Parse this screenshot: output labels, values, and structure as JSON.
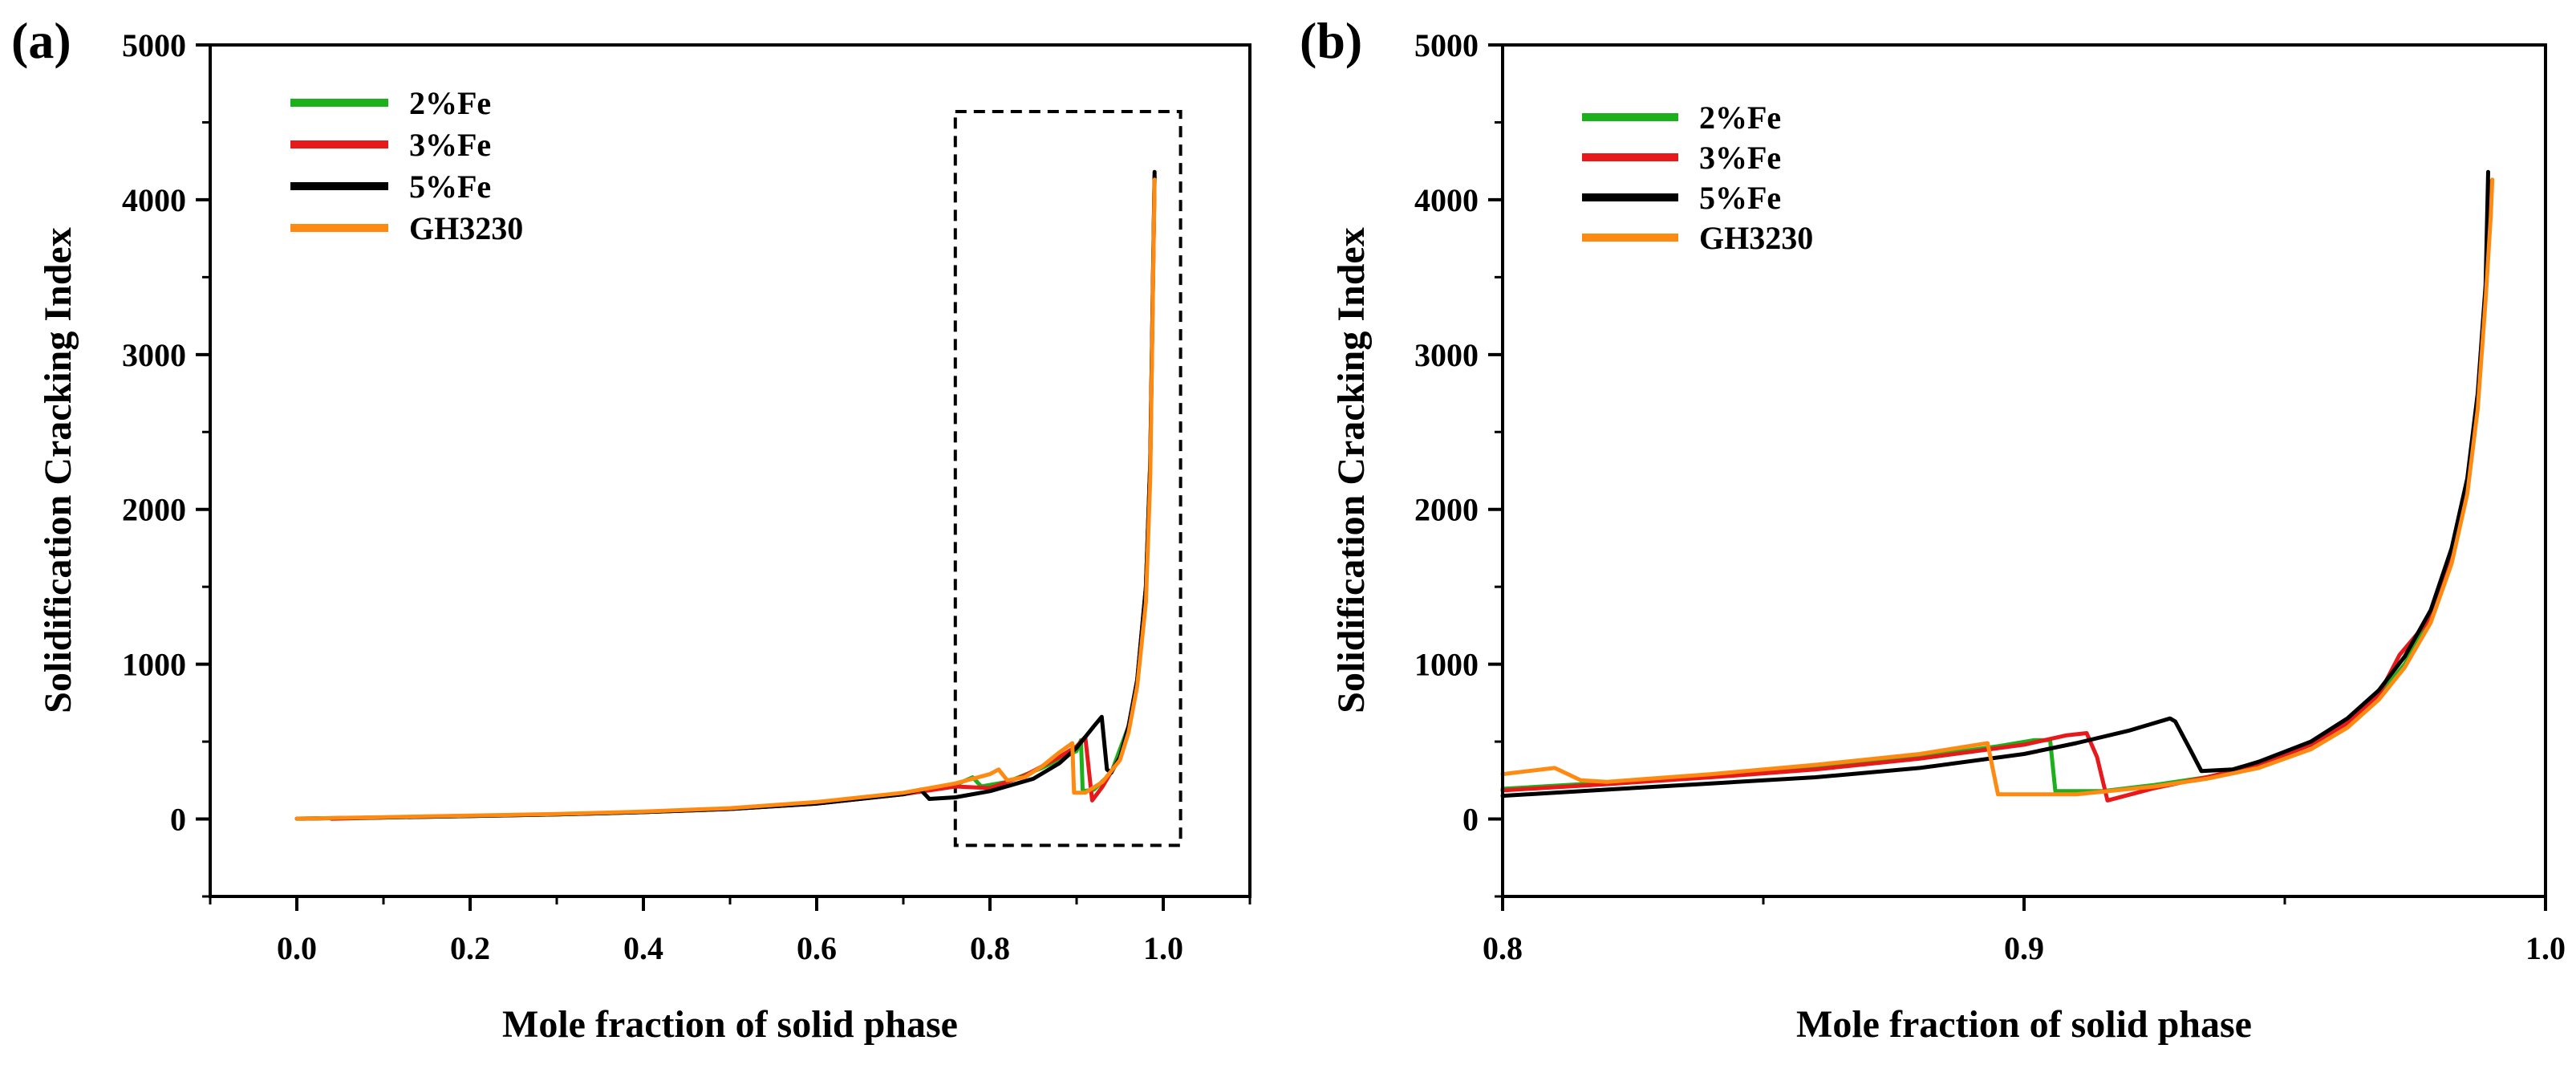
{
  "chart_data": [
    {
      "panel_label": "(a)",
      "type": "line",
      "xlabel": "Mole fraction of solid phase",
      "ylabel": "Solidification Cracking Index",
      "xlim": [
        -0.1,
        1.1
      ],
      "ylim": [
        -500,
        5000
      ],
      "xticks": [
        0.0,
        0.2,
        0.4,
        0.6,
        0.8,
        1.0
      ],
      "xtick_labels": [
        "0.0",
        "0.2",
        "0.4",
        "0.6",
        "0.8",
        "1.0"
      ],
      "yticks": [
        0,
        1000,
        2000,
        3000,
        4000,
        5000
      ],
      "ytick_labels": [
        "0",
        "1000",
        "2000",
        "3000",
        "4000",
        "5000"
      ],
      "legend_position": "top-left",
      "annotation": {
        "type": "dashed-rectangle",
        "x": [
          0.76,
          1.02
        ],
        "y": [
          -170,
          4570
        ]
      },
      "series": [
        {
          "name": "2%Fe",
          "color": "#1db01d",
          "points": [
            [
              0.0,
              2
            ],
            [
              0.1,
              10
            ],
            [
              0.2,
              20
            ],
            [
              0.3,
              30
            ],
            [
              0.4,
              45
            ],
            [
              0.5,
              65
            ],
            [
              0.6,
              100
            ],
            [
              0.7,
              160
            ],
            [
              0.76,
              220
            ],
            [
              0.78,
              270
            ],
            [
              0.79,
              210
            ],
            [
              0.82,
              240
            ],
            [
              0.86,
              330
            ],
            [
              0.9,
              440
            ],
            [
              0.905,
              510
            ],
            [
              0.907,
              180
            ],
            [
              0.92,
              190
            ],
            [
              0.94,
              300
            ],
            [
              0.96,
              600
            ],
            [
              0.97,
              900
            ],
            [
              0.98,
              1500
            ],
            [
              0.985,
              2300
            ],
            [
              0.99,
              4150
            ]
          ]
        },
        {
          "name": "3%Fe",
          "color": "#e8191b",
          "points": [
            [
              0.04,
              2
            ],
            [
              0.1,
              10
            ],
            [
              0.2,
              20
            ],
            [
              0.3,
              30
            ],
            [
              0.4,
              45
            ],
            [
              0.5,
              65
            ],
            [
              0.6,
              100
            ],
            [
              0.7,
              160
            ],
            [
              0.76,
              210
            ],
            [
              0.8,
              200
            ],
            [
              0.84,
              280
            ],
            [
              0.88,
              400
            ],
            [
              0.9,
              470
            ],
            [
              0.91,
              530
            ],
            [
              0.918,
              120
            ],
            [
              0.93,
              210
            ],
            [
              0.95,
              400
            ],
            [
              0.96,
              600
            ],
            [
              0.97,
              900
            ],
            [
              0.98,
              1500
            ],
            [
              0.985,
              2300
            ],
            [
              0.99,
              4150
            ]
          ]
        },
        {
          "name": "5%Fe",
          "color": "#000000",
          "points": [
            [
              0.0,
              3
            ],
            [
              0.1,
              10
            ],
            [
              0.2,
              20
            ],
            [
              0.3,
              30
            ],
            [
              0.4,
              45
            ],
            [
              0.5,
              65
            ],
            [
              0.6,
              100
            ],
            [
              0.7,
              160
            ],
            [
              0.72,
              190
            ],
            [
              0.73,
              130
            ],
            [
              0.76,
              140
            ],
            [
              0.8,
              180
            ],
            [
              0.85,
              260
            ],
            [
              0.88,
              360
            ],
            [
              0.9,
              460
            ],
            [
              0.92,
              600
            ],
            [
              0.929,
              660
            ],
            [
              0.935,
              320
            ],
            [
              0.94,
              300
            ],
            [
              0.95,
              400
            ],
            [
              0.96,
              600
            ],
            [
              0.97,
              900
            ],
            [
              0.98,
              1500
            ],
            [
              0.985,
              2300
            ],
            [
              0.99,
              4180
            ]
          ]
        },
        {
          "name": "GH3230",
          "color": "#ff8a12",
          "points": [
            [
              0.0,
              3
            ],
            [
              0.1,
              12
            ],
            [
              0.2,
              22
            ],
            [
              0.3,
              33
            ],
            [
              0.4,
              48
            ],
            [
              0.5,
              70
            ],
            [
              0.6,
              110
            ],
            [
              0.7,
              170
            ],
            [
              0.76,
              230
            ],
            [
              0.8,
              290
            ],
            [
              0.81,
              320
            ],
            [
              0.82,
              250
            ],
            [
              0.84,
              270
            ],
            [
              0.86,
              340
            ],
            [
              0.88,
              430
            ],
            [
              0.895,
              490
            ],
            [
              0.897,
              170
            ],
            [
              0.91,
              170
            ],
            [
              0.93,
              240
            ],
            [
              0.95,
              380
            ],
            [
              0.96,
              560
            ],
            [
              0.97,
              860
            ],
            [
              0.98,
              1400
            ],
            [
              0.985,
              2200
            ],
            [
              0.99,
              4130
            ]
          ]
        }
      ]
    },
    {
      "panel_label": "(b)",
      "type": "line",
      "xlabel": "Mole fraction of solid phase",
      "ylabel": "Solidification Cracking Index",
      "xlim": [
        0.8,
        1.0
      ],
      "ylim": [
        -500,
        5000
      ],
      "xticks": [
        0.8,
        0.9,
        1.0
      ],
      "xtick_labels": [
        "0.8",
        "0.9",
        "1.0"
      ],
      "yticks": [
        0,
        1000,
        2000,
        3000,
        4000,
        5000
      ],
      "ytick_labels": [
        "0",
        "1000",
        "2000",
        "3000",
        "4000",
        "5000"
      ],
      "legend_position": "top-left",
      "series": [
        {
          "name": "2%Fe",
          "color": "#1db01d",
          "points": [
            [
              0.8,
              195
            ],
            [
              0.82,
              235
            ],
            [
              0.84,
              280
            ],
            [
              0.86,
              330
            ],
            [
              0.88,
              400
            ],
            [
              0.895,
              470
            ],
            [
              0.902,
              510
            ],
            [
              0.905,
              510
            ],
            [
              0.906,
              180
            ],
            [
              0.915,
              180
            ],
            [
              0.925,
              220
            ],
            [
              0.935,
              270
            ],
            [
              0.945,
              350
            ],
            [
              0.955,
              480
            ],
            [
              0.962,
              620
            ],
            [
              0.968,
              800
            ],
            [
              0.973,
              1000
            ],
            [
              0.978,
              1300
            ],
            [
              0.982,
              1700
            ],
            [
              0.985,
              2150
            ],
            [
              0.987,
              2700
            ],
            [
              0.9885,
              3400
            ],
            [
              0.9895,
              4100
            ]
          ]
        },
        {
          "name": "3%Fe",
          "color": "#e8191b",
          "points": [
            [
              0.8,
              185
            ],
            [
              0.82,
              225
            ],
            [
              0.84,
              270
            ],
            [
              0.86,
              320
            ],
            [
              0.88,
              390
            ],
            [
              0.9,
              480
            ],
            [
              0.908,
              540
            ],
            [
              0.912,
              555
            ],
            [
              0.914,
              400
            ],
            [
              0.916,
              120
            ],
            [
              0.925,
              200
            ],
            [
              0.935,
              270
            ],
            [
              0.945,
              350
            ],
            [
              0.955,
              480
            ],
            [
              0.962,
              620
            ],
            [
              0.968,
              800
            ],
            [
              0.972,
              1060
            ],
            [
              0.978,
              1300
            ],
            [
              0.982,
              1700
            ],
            [
              0.985,
              2150
            ],
            [
              0.987,
              2700
            ],
            [
              0.9885,
              3400
            ],
            [
              0.9895,
              4120
            ]
          ]
        },
        {
          "name": "5%Fe",
          "color": "#000000",
          "points": [
            [
              0.8,
              150
            ],
            [
              0.82,
              190
            ],
            [
              0.84,
              230
            ],
            [
              0.86,
              270
            ],
            [
              0.88,
              330
            ],
            [
              0.9,
              420
            ],
            [
              0.91,
              490
            ],
            [
              0.92,
              570
            ],
            [
              0.928,
              650
            ],
            [
              0.929,
              630
            ],
            [
              0.932,
              440
            ],
            [
              0.934,
              310
            ],
            [
              0.94,
              320
            ],
            [
              0.945,
              370
            ],
            [
              0.955,
              500
            ],
            [
              0.962,
              650
            ],
            [
              0.968,
              830
            ],
            [
              0.973,
              1050
            ],
            [
              0.978,
              1350
            ],
            [
              0.982,
              1750
            ],
            [
              0.985,
              2200
            ],
            [
              0.987,
              2750
            ],
            [
              0.9885,
              3450
            ],
            [
              0.989,
              4180
            ]
          ]
        },
        {
          "name": "GH3230",
          "color": "#ff8a12",
          "points": [
            [
              0.8,
              290
            ],
            [
              0.805,
              310
            ],
            [
              0.81,
              330
            ],
            [
              0.815,
              250
            ],
            [
              0.82,
              240
            ],
            [
              0.84,
              290
            ],
            [
              0.86,
              350
            ],
            [
              0.88,
              420
            ],
            [
              0.893,
              490
            ],
            [
              0.895,
              160
            ],
            [
              0.91,
              160
            ],
            [
              0.925,
              210
            ],
            [
              0.935,
              260
            ],
            [
              0.945,
              330
            ],
            [
              0.955,
              450
            ],
            [
              0.962,
              590
            ],
            [
              0.968,
              770
            ],
            [
              0.973,
              980
            ],
            [
              0.978,
              1270
            ],
            [
              0.982,
              1650
            ],
            [
              0.985,
              2100
            ],
            [
              0.987,
              2650
            ],
            [
              0.9885,
              3350
            ],
            [
              0.9895,
              3900
            ],
            [
              0.9898,
              4130
            ]
          ]
        }
      ]
    }
  ]
}
